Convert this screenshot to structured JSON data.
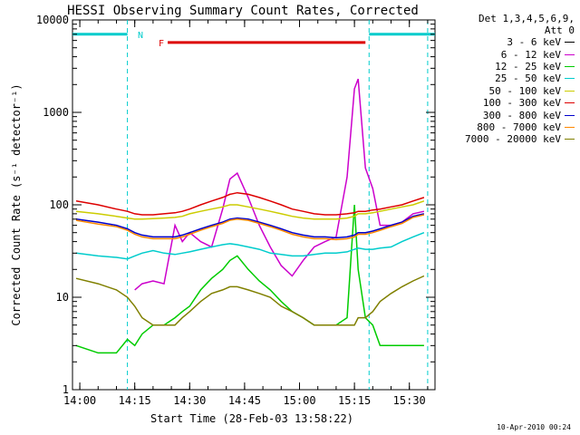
{
  "chart_data": {
    "type": "line",
    "title": "HESSI Observing Summary Count Rates, Corrected",
    "xlabel": "Start Time (28-Feb-03 13:58:22)",
    "ylabel": "Corrected Count Rate (s⁻¹ detector⁻¹)",
    "yscale": "log",
    "ylim": [
      1,
      10000
    ],
    "xlim": [
      "13:58",
      "15:37"
    ],
    "x_ticks": [
      "14:00",
      "14:15",
      "14:30",
      "14:45",
      "15:00",
      "15:15",
      "15:30"
    ],
    "y_ticks": [
      "1",
      "10",
      "100",
      "1000",
      "10000"
    ],
    "grid": false,
    "legend_placement": "right",
    "legend_header": [
      "Det 1,3,4,5,6,9,",
      "Att 0"
    ],
    "x": [
      "13:59",
      "14:05",
      "14:10",
      "14:13",
      "14:15",
      "14:17",
      "14:20",
      "14:23",
      "14:26",
      "14:28",
      "14:30",
      "14:33",
      "14:36",
      "14:39",
      "14:41",
      "14:43",
      "14:46",
      "14:49",
      "14:52",
      "14:55",
      "14:58",
      "15:01",
      "15:04",
      "15:07",
      "15:10",
      "15:13",
      "15:15",
      "15:16",
      "15:18",
      "15:20",
      "15:22",
      "15:25",
      "15:28",
      "15:31",
      "15:34"
    ],
    "series": [
      {
        "name": "3 - 6 keV",
        "color": "#000000",
        "values": [
          null,
          null,
          null,
          null,
          1,
          1,
          1,
          1,
          1,
          1,
          1,
          null,
          null,
          null,
          null,
          null,
          null,
          null,
          null,
          null,
          null,
          null,
          null,
          null,
          null,
          null,
          null,
          null,
          null,
          null,
          null,
          null,
          null,
          null,
          null
        ]
      },
      {
        "name": "6 - 12 keV",
        "color": "#cc00cc",
        "values": [
          null,
          null,
          null,
          null,
          12,
          14,
          15,
          14,
          60,
          40,
          50,
          40,
          35,
          90,
          190,
          220,
          120,
          60,
          35,
          22,
          17,
          25,
          35,
          40,
          45,
          200,
          1800,
          2300,
          250,
          150,
          60,
          60,
          65,
          80,
          85
        ]
      },
      {
        "name": "12 - 25 keV",
        "color": "#00cc00",
        "values": [
          3,
          2.5,
          2.5,
          3.5,
          3,
          4,
          5,
          5,
          6,
          7,
          8,
          12,
          16,
          20,
          25,
          28,
          20,
          15,
          12,
          9,
          7,
          6,
          5,
          5,
          5,
          6,
          100,
          20,
          6,
          5,
          3,
          3,
          3,
          3,
          3
        ]
      },
      {
        "name": "25 - 50 keV",
        "color": "#00cccc",
        "values": [
          30,
          28,
          27,
          26,
          28,
          30,
          32,
          30,
          29,
          30,
          31,
          33,
          35,
          37,
          38,
          37,
          35,
          33,
          30,
          29,
          28,
          28,
          29,
          30,
          30,
          31,
          33,
          34,
          33,
          33,
          34,
          35,
          40,
          45,
          50
        ]
      },
      {
        "name": "50 - 100 keV",
        "color": "#cccc00",
        "values": [
          85,
          80,
          75,
          72,
          70,
          70,
          71,
          72,
          73,
          75,
          80,
          85,
          90,
          95,
          100,
          100,
          95,
          90,
          85,
          80,
          75,
          72,
          70,
          70,
          70,
          72,
          75,
          80,
          80,
          82,
          85,
          90,
          95,
          100,
          110
        ]
      },
      {
        "name": "100 - 300 keV",
        "color": "#dd0000",
        "values": [
          110,
          100,
          90,
          85,
          80,
          78,
          78,
          80,
          82,
          85,
          90,
          100,
          110,
          120,
          130,
          135,
          130,
          120,
          110,
          100,
          90,
          85,
          80,
          78,
          78,
          80,
          82,
          85,
          85,
          88,
          90,
          95,
          100,
          110,
          120
        ]
      },
      {
        "name": "300 - 800 keV",
        "color": "#0000cc",
        "values": [
          70,
          65,
          60,
          55,
          50,
          47,
          45,
          45,
          45,
          47,
          50,
          55,
          60,
          65,
          70,
          72,
          70,
          65,
          60,
          55,
          50,
          47,
          45,
          45,
          44,
          45,
          47,
          50,
          50,
          52,
          55,
          60,
          65,
          75,
          80
        ]
      },
      {
        "name": "800 - 7000 keV",
        "color": "#ff8800",
        "values": [
          68,
          62,
          58,
          53,
          48,
          45,
          43,
          43,
          43,
          45,
          48,
          53,
          58,
          63,
          68,
          70,
          68,
          63,
          58,
          53,
          48,
          45,
          43,
          43,
          42,
          43,
          45,
          48,
          48,
          50,
          53,
          58,
          63,
          73,
          78
        ]
      },
      {
        "name": "7000 - 20000 keV",
        "color": "#808000",
        "values": [
          16,
          14,
          12,
          10,
          8,
          6,
          5,
          5,
          5,
          6,
          7,
          9,
          11,
          12,
          13,
          13,
          12,
          11,
          10,
          8,
          7,
          6,
          5,
          5,
          5,
          5,
          5,
          6,
          6,
          7,
          9,
          11,
          13,
          15,
          17
        ]
      }
    ],
    "annotations": [
      {
        "label": "N",
        "x_start": "13:58",
        "x_end": "14:13",
        "level": 7000,
        "color": "#00cccc",
        "style": "solid"
      },
      {
        "label": "",
        "x_start": "15:19",
        "x_end": "15:37",
        "level": 7000,
        "color": "#00cccc",
        "style": "solid"
      },
      {
        "label": "F",
        "x_start": "14:24",
        "x_end": "15:18",
        "level": 5700,
        "color": "#dd0000",
        "style": "solid"
      }
    ],
    "vertical_markers": [
      "14:13",
      "15:19",
      "15:35"
    ]
  },
  "footer": {
    "timestamp": "10-Apr-2010 00:24"
  }
}
